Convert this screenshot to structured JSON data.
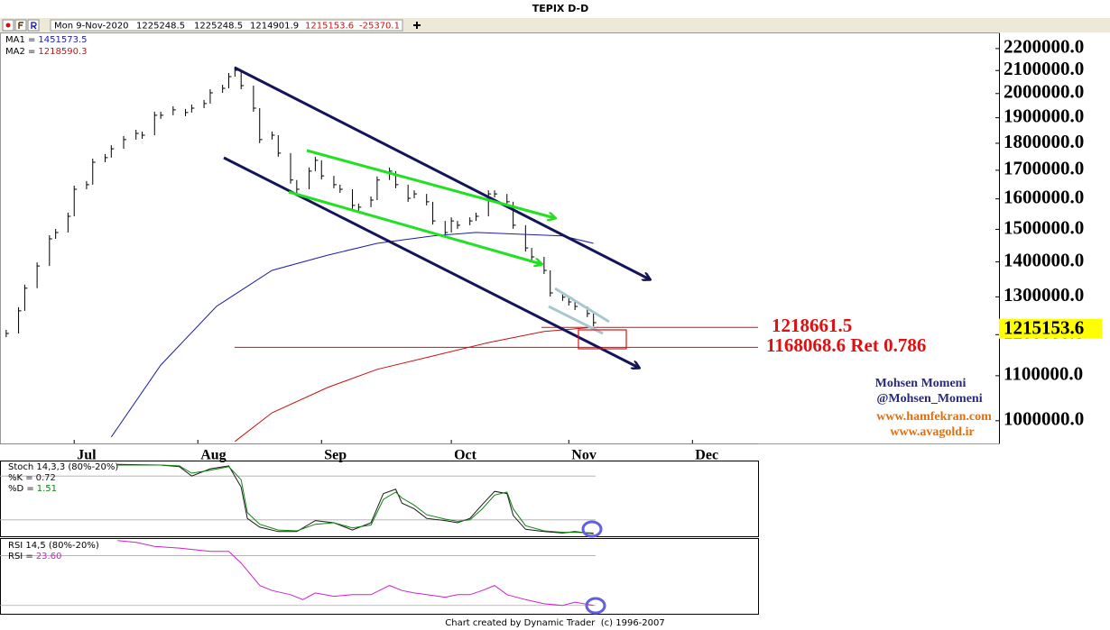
{
  "header": {
    "title": "TEPIX D-D",
    "date": "Mon 9-Nov-2020",
    "open": 1225248.5,
    "high": 1225248.5,
    "low": 1214901.9,
    "close": 1215153.6,
    "change": -25370.1
  },
  "chart_data": [
    {
      "type": "price",
      "log": true,
      "grid": false,
      "xlim": [
        0,
        161
      ],
      "ylim": [
        953000,
        2272000
      ],
      "xticks": [
        {
          "value": 12,
          "label": "Jul"
        },
        {
          "value": 32,
          "label": "Aug"
        },
        {
          "value": 52,
          "label": "Sep"
        },
        {
          "value": 73,
          "label": "Oct"
        },
        {
          "value": 92,
          "label": "Nov"
        },
        {
          "value": 112,
          "label": "Dec"
        }
      ],
      "yticks": [
        {
          "value": 1000000,
          "label": "1000000.0"
        },
        {
          "value": 1100000,
          "label": "1100000.0"
        },
        {
          "value": 1200000,
          "label": "1200000.0"
        },
        {
          "value": 1300000,
          "label": "1300000.0"
        },
        {
          "value": 1400000,
          "label": "1400000.0"
        },
        {
          "value": 1500000,
          "label": "1500000.0"
        },
        {
          "value": 1600000,
          "label": "1600000.0"
        },
        {
          "value": 1700000,
          "label": "1700000.0"
        },
        {
          "value": 1800000,
          "label": "1800000.0"
        },
        {
          "value": 1900000,
          "label": "1900000.0"
        },
        {
          "value": 2000000,
          "label": "2000000.0"
        },
        {
          "value": 2100000,
          "label": "2100000.0"
        },
        {
          "value": 2200000,
          "label": "2200000.0"
        }
      ],
      "last_price": 1215153.6,
      "levels": [
        {
          "value": 1218661.5,
          "label": "1218661.5"
        },
        {
          "value": 1168068.6,
          "label": "1168068.6 Ret 0.786"
        }
      ],
      "series": [
        {
          "kind": "bars",
          "color": "#000000",
          "x": [
            1,
            3,
            4,
            6,
            8,
            9,
            11,
            12,
            14,
            15,
            17,
            18,
            20,
            22,
            23,
            25,
            26,
            28,
            30,
            31,
            33,
            34,
            36,
            37,
            38,
            39,
            41,
            42,
            44,
            45,
            47,
            48,
            50,
            51,
            52,
            54,
            55,
            57,
            58,
            60,
            61,
            63,
            64,
            66,
            67,
            69,
            70,
            72,
            73,
            74,
            76,
            77,
            79,
            80,
            82,
            83,
            85,
            86,
            88,
            89,
            91,
            92,
            93,
            95,
            96
          ],
          "values": [
            1203000,
            1262000,
            1324000,
            1388000,
            1470000,
            1490000,
            1542000,
            1633000,
            1649000,
            1729000,
            1746000,
            1779000,
            1814000,
            1838000,
            1831000,
            1910000,
            1910000,
            1932000,
            1921000,
            1939000,
            1958000,
            2003000,
            2022000,
            2073000,
            2101000,
            2034000,
            1939000,
            1814000,
            1831000,
            1763000,
            1665000,
            1633000,
            1697000,
            1736000,
            1680000,
            1649000,
            1633000,
            1578000,
            1572000,
            1596000,
            1665000,
            1697000,
            1649000,
            1602000,
            1617000,
            1590000,
            1527000,
            1490000,
            1527000,
            1513000,
            1527000,
            1542000,
            1617000,
            1617000,
            1590000,
            1513000,
            1442000,
            1415000,
            1375000,
            1311000,
            1299000,
            1286000,
            1274000,
            1255000,
            1231000
          ]
        },
        {
          "kind": "line",
          "name": "MA1 =",
          "color": "#1c1ca8",
          "last": 1451573.5,
          "x": [
            18,
            26,
            35,
            44,
            53,
            61,
            70,
            77,
            85,
            91,
            96
          ],
          "values": [
            966000,
            1125000,
            1274000,
            1375000,
            1420000,
            1456000,
            1479000,
            1490000,
            1484000,
            1479000,
            1456000
          ]
        },
        {
          "kind": "line",
          "name": "MA2 =",
          "color": "#cc1010",
          "last": 1218590.3,
          "x": [
            38,
            44,
            53,
            61,
            70,
            79,
            88,
            96
          ],
          "values": [
            957000,
            1017000,
            1073000,
            1115000,
            1147000,
            1180000,
            1208000,
            1219000
          ]
        }
      ]
    },
    {
      "type": "line",
      "title": "Stoch 14,3,3 (80%-20%)",
      "xlim": [
        0,
        122.6
      ],
      "ylim": [
        0,
        100
      ],
      "guides": [
        80,
        20
      ],
      "series": [
        {
          "name": "%K =",
          "color": "#1a1a1a",
          "last": 0.72,
          "x": [
            19,
            26,
            29,
            31,
            34,
            37,
            39,
            40,
            42,
            45,
            48,
            51,
            54,
            57,
            60,
            62,
            64,
            65,
            67,
            69,
            72,
            74,
            76,
            78,
            80,
            82,
            83,
            85,
            88,
            91,
            93,
            96
          ],
          "values": [
            96,
            95,
            93,
            80,
            90,
            94,
            65,
            22,
            10,
            4,
            4,
            19,
            16,
            6,
            16,
            56,
            62,
            43,
            35,
            22,
            19,
            16,
            22,
            41,
            59,
            56,
            26,
            7,
            4,
            2,
            4,
            1
          ]
        },
        {
          "name": "%D =",
          "color": "#108010",
          "last": 1.51,
          "x": [
            19,
            26,
            29,
            31,
            34,
            37,
            39,
            40,
            42,
            45,
            48,
            51,
            54,
            57,
            60,
            62,
            64,
            65,
            67,
            69,
            72,
            74,
            76,
            78,
            80,
            82,
            83,
            85,
            88,
            91,
            93,
            96
          ],
          "values": [
            95,
            95,
            94,
            84,
            88,
            93,
            75,
            30,
            14,
            6,
            5,
            14,
            16,
            9,
            13,
            48,
            58,
            50,
            40,
            27,
            21,
            18,
            20,
            35,
            54,
            58,
            35,
            12,
            5,
            3,
            3,
            2
          ]
        }
      ]
    },
    {
      "type": "line",
      "title": "RSI 14,5 (80%-20%)",
      "xlim": [
        0,
        122.6
      ],
      "ylim": [
        10,
        100
      ],
      "guides": [
        80,
        20
      ],
      "series": [
        {
          "name": "RSI =",
          "color": "#cc22cc",
          "last": {
            "value": 23.6,
            "label": "23.60"
          },
          "x": [
            19,
            22,
            25,
            29,
            34,
            37,
            39,
            42,
            44,
            47,
            49,
            51,
            54,
            57,
            60,
            63,
            65,
            67,
            69,
            72,
            74,
            76,
            78,
            80,
            82,
            85,
            88,
            91,
            93,
            96
          ],
          "values": [
            98,
            96,
            91,
            89,
            85,
            85,
            71,
            44,
            38,
            33,
            27,
            35,
            31,
            33,
            33,
            44,
            38,
            35,
            33,
            30,
            33,
            33,
            38,
            44,
            33,
            27,
            22,
            20,
            24,
            20
          ]
        }
      ]
    }
  ],
  "credits": [
    "Mohsen Momeni",
    "@Mohsen_Momeni",
    "www.hamfekran.com",
    "www.avagold.ir"
  ],
  "footer": "Chart created by Dynamic Trader  (c) 1996-2007"
}
